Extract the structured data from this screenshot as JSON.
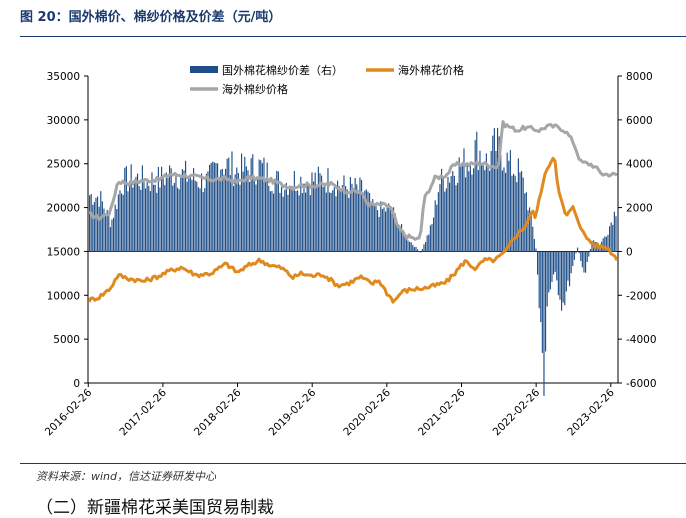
{
  "figure": {
    "title": "图 20：国外棉价、棉纱价格及价差（元/吨）",
    "source": "资料来源：wind，信达证券研发中心",
    "next_heading": "（二）新疆棉花采美国贸易制裁"
  },
  "chart_data": {
    "type": "bar+line",
    "title": "国外棉价、棉纱价格及价差（元/吨）",
    "x_ticks": [
      "2016-02-26",
      "2017-02-26",
      "2018-02-26",
      "2019-02-26",
      "2020-02-26",
      "2021-02-26",
      "2022-02-26",
      "2023-02-26"
    ],
    "x_range_years": [
      2016.15,
      2023.25
    ],
    "y_left": {
      "min": 0,
      "max": 35000,
      "ticks": [
        0,
        5000,
        10000,
        15000,
        20000,
        25000,
        30000,
        35000
      ]
    },
    "y_right": {
      "min": -6000,
      "max": 8000,
      "ticks": [
        -6000,
        -4000,
        -2000,
        0,
        2000,
        4000,
        6000,
        8000
      ]
    },
    "series": [
      {
        "name": "国外棉花棉纱价差（右）",
        "type": "bar",
        "axis": "right",
        "color": "#1f4e89",
        "x": [
          2016.15,
          2016.3,
          2016.45,
          2016.6,
          2016.75,
          2016.85,
          2016.95,
          2017.1,
          2017.25,
          2017.45,
          2017.6,
          2017.75,
          2017.9,
          2018.05,
          2018.15,
          2018.3,
          2018.45,
          2018.6,
          2018.75,
          2018.9,
          2019.05,
          2019.2,
          2019.4,
          2019.55,
          2019.7,
          2019.85,
          2019.95,
          2020.1,
          2020.2,
          2020.3,
          2020.4,
          2020.5,
          2020.6,
          2020.75,
          2020.85,
          2020.95,
          2021.0,
          2021.1,
          2021.25,
          2021.35,
          2021.5,
          2021.6,
          2021.7,
          2021.8,
          2021.9,
          2022.0,
          2022.1,
          2022.15,
          2022.2,
          2022.25,
          2022.3,
          2022.4,
          2022.5,
          2022.6,
          2022.7,
          2022.8,
          2022.9,
          2023.0,
          2023.1,
          2023.2,
          2023.25
        ],
        "values": [
          2600,
          2500,
          1300,
          3200,
          3400,
          3300,
          3250,
          3300,
          3600,
          3500,
          3300,
          3200,
          4100,
          3900,
          3700,
          3800,
          3900,
          3400,
          3100,
          3300,
          3250,
          3300,
          3300,
          3000,
          2900,
          2800,
          2000,
          1900,
          2000,
          1300,
          700,
          300,
          -50,
          1200,
          3200,
          3400,
          3600,
          3900,
          4200,
          4800,
          4000,
          4900,
          4500,
          3900,
          3700,
          2900,
          1100,
          0,
          -3500,
          -5900,
          -2000,
          -1100,
          -2500,
          -1300,
          200,
          -1100,
          600,
          300,
          900,
          1800,
          2300
        ]
      },
      {
        "name": "海外棉花价格",
        "type": "line",
        "axis": "left",
        "color": "#e08a1e",
        "x": [
          2016.15,
          2016.3,
          2016.45,
          2016.55,
          2016.7,
          2016.9,
          2017.1,
          2017.25,
          2017.4,
          2017.6,
          2017.8,
          2018.0,
          2018.15,
          2018.3,
          2018.45,
          2018.6,
          2018.75,
          2018.9,
          2019.0,
          2019.15,
          2019.3,
          2019.5,
          2019.65,
          2019.8,
          2019.95,
          2020.05,
          2020.15,
          2020.25,
          2020.35,
          2020.5,
          2020.65,
          2020.8,
          2020.95,
          2021.05,
          2021.2,
          2021.35,
          2021.45,
          2021.6,
          2021.75,
          2021.85,
          2022.0,
          2022.1,
          2022.15,
          2022.2,
          2022.3,
          2022.4,
          2022.45,
          2022.55,
          2022.65,
          2022.8,
          2022.95,
          2023.1,
          2023.25
        ],
        "values": [
          9400,
          9800,
          10800,
          12300,
          11900,
          11600,
          12200,
          12800,
          13200,
          12300,
          12500,
          13600,
          12600,
          13400,
          14000,
          13400,
          13100,
          12000,
          12500,
          12200,
          12400,
          11100,
          11400,
          12100,
          11300,
          11700,
          10300,
          9300,
          10400,
          10700,
          10800,
          11100,
          11500,
          12400,
          13900,
          13000,
          14000,
          14000,
          15000,
          16500,
          17800,
          19600,
          18800,
          21300,
          24500,
          26000,
          22000,
          19000,
          20000,
          16800,
          15600,
          15500,
          14000
        ]
      },
      {
        "name": "海外棉纱价格",
        "type": "line",
        "axis": "left",
        "color": "#a6a6a6",
        "x": [
          2016.15,
          2016.3,
          2016.45,
          2016.55,
          2016.7,
          2016.9,
          2017.1,
          2017.25,
          2017.4,
          2017.6,
          2017.8,
          2018.0,
          2018.15,
          2018.3,
          2018.45,
          2018.6,
          2018.75,
          2018.9,
          2019.0,
          2019.2,
          2019.4,
          2019.6,
          2019.8,
          2019.9,
          2020.0,
          2020.1,
          2020.2,
          2020.3,
          2020.4,
          2020.55,
          2020.6,
          2020.65,
          2020.8,
          2020.95,
          2021.05,
          2021.15,
          2021.25,
          2021.4,
          2021.55,
          2021.65,
          2021.7,
          2021.8,
          2021.9,
          2022.0,
          2022.1,
          2022.2,
          2022.3,
          2022.45,
          2022.55,
          2022.65,
          2022.75,
          2022.9,
          2023.05,
          2023.15,
          2023.25
        ],
        "values": [
          19300,
          18800,
          19500,
          23000,
          22800,
          23100,
          23200,
          23800,
          23700,
          23500,
          23200,
          23300,
          22900,
          23400,
          23300,
          23100,
          22600,
          22300,
          22600,
          22500,
          22700,
          21900,
          21800,
          20400,
          20300,
          20300,
          20100,
          17800,
          16800,
          16400,
          16400,
          20900,
          23400,
          23700,
          24800,
          25000,
          24900,
          25100,
          24800,
          24600,
          29600,
          29200,
          28800,
          29100,
          29000,
          28800,
          29300,
          29200,
          28700,
          27500,
          25200,
          24900,
          23800,
          23800,
          23700
        ]
      }
    ]
  }
}
